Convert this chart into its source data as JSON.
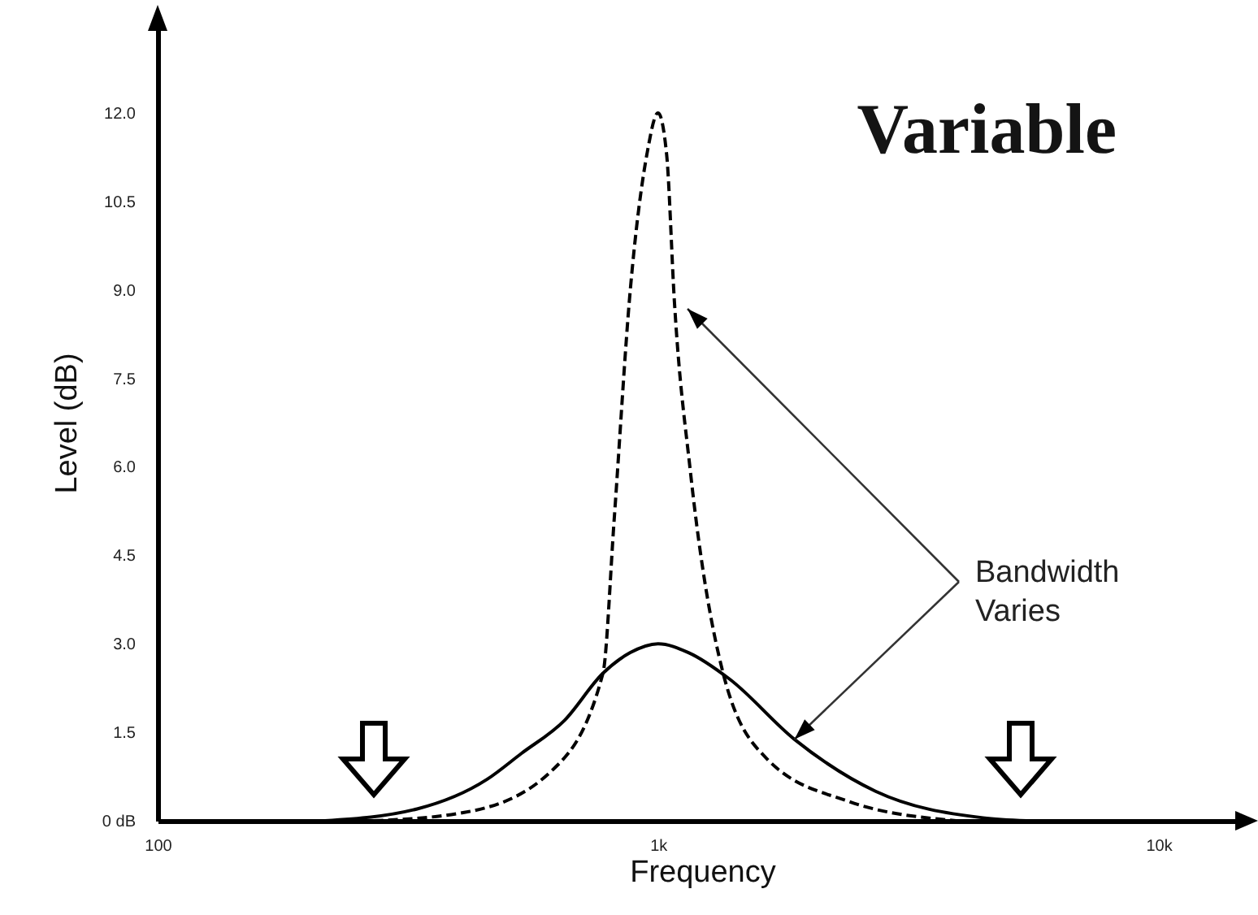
{
  "chart_data": {
    "type": "line",
    "title": "Variable",
    "xlabel": "Frequency",
    "ylabel": "Level (dB)",
    "log": "x",
    "xlim": [
      100,
      15000
    ],
    "xticks": [
      100,
      {
        "value": 1000,
        "label": "1k"
      },
      {
        "value": 10000,
        "label": "10k"
      }
    ],
    "ylim": [
      0,
      13.5
    ],
    "yticks": [
      {
        "value": 0,
        "label": "0 dB"
      },
      {
        "value": 1.5,
        "label": "1.5"
      },
      {
        "value": 3,
        "label": "3.0"
      },
      {
        "value": 4.5,
        "label": "4.5"
      },
      {
        "value": 6,
        "label": "6.0"
      },
      {
        "value": 7.5,
        "label": "7.5"
      },
      {
        "value": 9,
        "label": "9.0"
      },
      {
        "value": 10.5,
        "label": "10.5"
      },
      {
        "value": 12,
        "label": "12.0"
      }
    ],
    "annotations": [
      {
        "text": "Bandwidth Varies",
        "x": 1873,
        "y": 1.38
      }
    ],
    "marker": "none",
    "series": [
      {
        "color": "#000000",
        "line_style": "dashed",
        "x": [
          270,
          410,
          610,
          776,
          817,
          880,
          950,
          1000,
          1040,
          1078,
          1161,
          1349,
          1650,
          2400,
          3960
        ],
        "values": [
          0,
          0.14,
          0.83,
          2.5,
          5.1,
          9.0,
          11.3,
          12,
          11.3,
          8.8,
          5.9,
          2.5,
          1.05,
          0.33,
          0
        ]
      },
      {
        "color": "#000000",
        "line_style": "solid",
        "x": [
          216,
          330,
          455,
          533,
          650,
          776,
          880,
          1000,
          1150,
          1390,
          1873,
          2720,
          4460,
          5450
        ],
        "values": [
          0,
          0.2,
          0.7,
          1.14,
          1.7,
          2.5,
          2.85,
          3.0,
          2.85,
          2.4,
          1.38,
          0.5,
          0.05,
          0
        ]
      }
    ]
  }
}
